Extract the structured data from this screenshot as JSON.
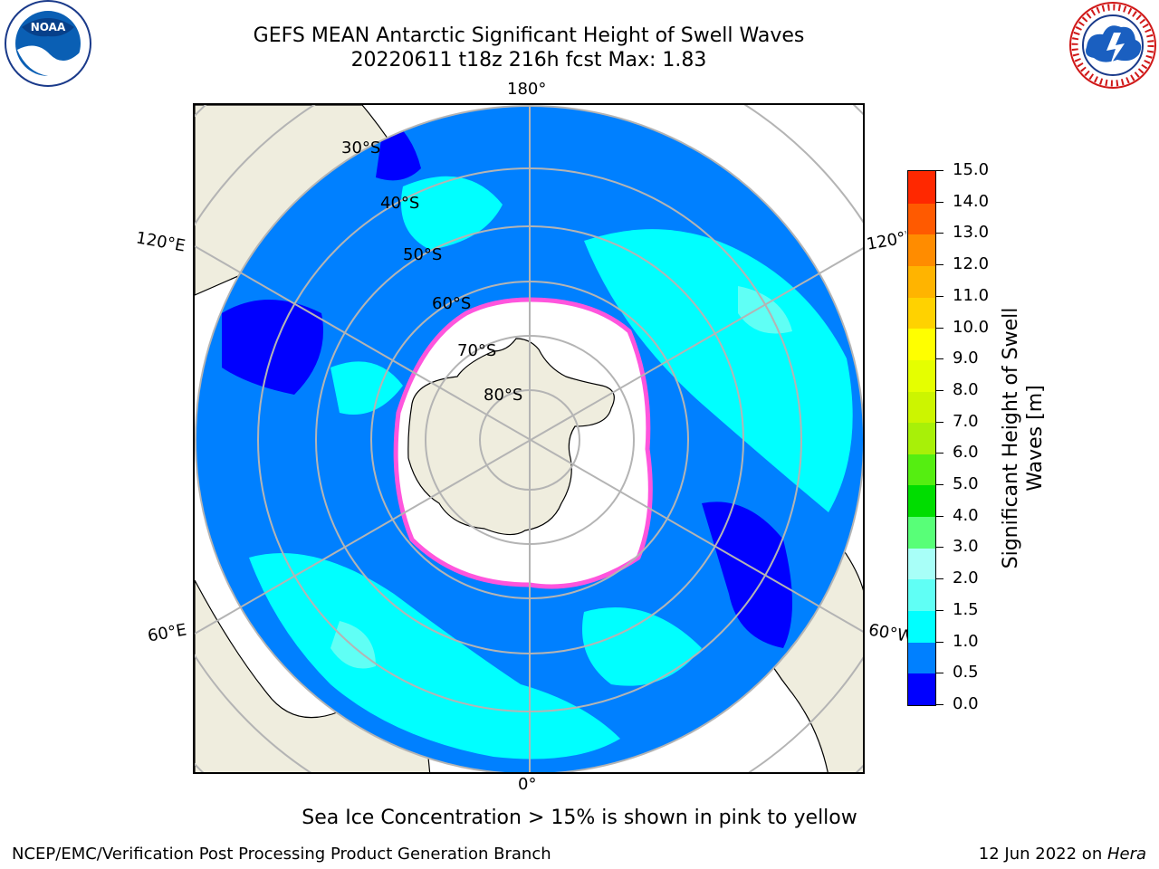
{
  "header": {
    "title_line1": "GEFS MEAN Antarctic Significant Height of Swell Waves",
    "title_line2": "20220611 t18z 216h fcst   Max: 1.83"
  },
  "map": {
    "longitude_labels": {
      "top": "180°",
      "bottom": "0°",
      "upper_left": "120°E",
      "upper_right": "120°W",
      "lower_left": "60°E",
      "lower_right": "60°W"
    },
    "latitude_labels": [
      "30°S",
      "40°S",
      "50°S",
      "60°S",
      "70°S",
      "80°S"
    ],
    "colors": {
      "land": "#efedde",
      "ocean_0_0.5": "#0000ff",
      "ocean_0.5_1.0": "#0080ff",
      "ocean_1.0_1.5": "#00ffff",
      "ocean_1.5_2.0": "#5ffff5",
      "sea_ice": "#ffffff",
      "ice_edge": "#ff55dd",
      "grid": "#b4b4b4"
    }
  },
  "colorbar": {
    "title_line1": "Significant Height of Swell",
    "title_line2": "Waves [m]",
    "ticks": [
      "0.0",
      "0.5",
      "1.0",
      "1.5",
      "2.0",
      "3.0",
      "4.0",
      "5.0",
      "6.0",
      "7.0",
      "8.0",
      "9.0",
      "10.0",
      "11.0",
      "12.0",
      "13.0",
      "14.0",
      "15.0"
    ],
    "colors": [
      "#0000ff",
      "#0080ff",
      "#00ffff",
      "#60fff5",
      "#a8fff8",
      "#58ff78",
      "#00dd00",
      "#55ee11",
      "#a8f008",
      "#ccf500",
      "#e5ff00",
      "#ffff00",
      "#ffd200",
      "#ffb400",
      "#ff8c00",
      "#ff5a00",
      "#ff2800"
    ]
  },
  "logos": {
    "noaa_text": "NOAA",
    "nws_text": "NATIONAL WEATHER SERVICE"
  },
  "footer": {
    "note": "Sea Ice Concentration > 15% is shown in pink to yellow",
    "left": "NCEP/EMC/Verification Post Processing Product Generation Branch",
    "right_prefix": "12 Jun 2022 on ",
    "right_machine": "Hera"
  }
}
